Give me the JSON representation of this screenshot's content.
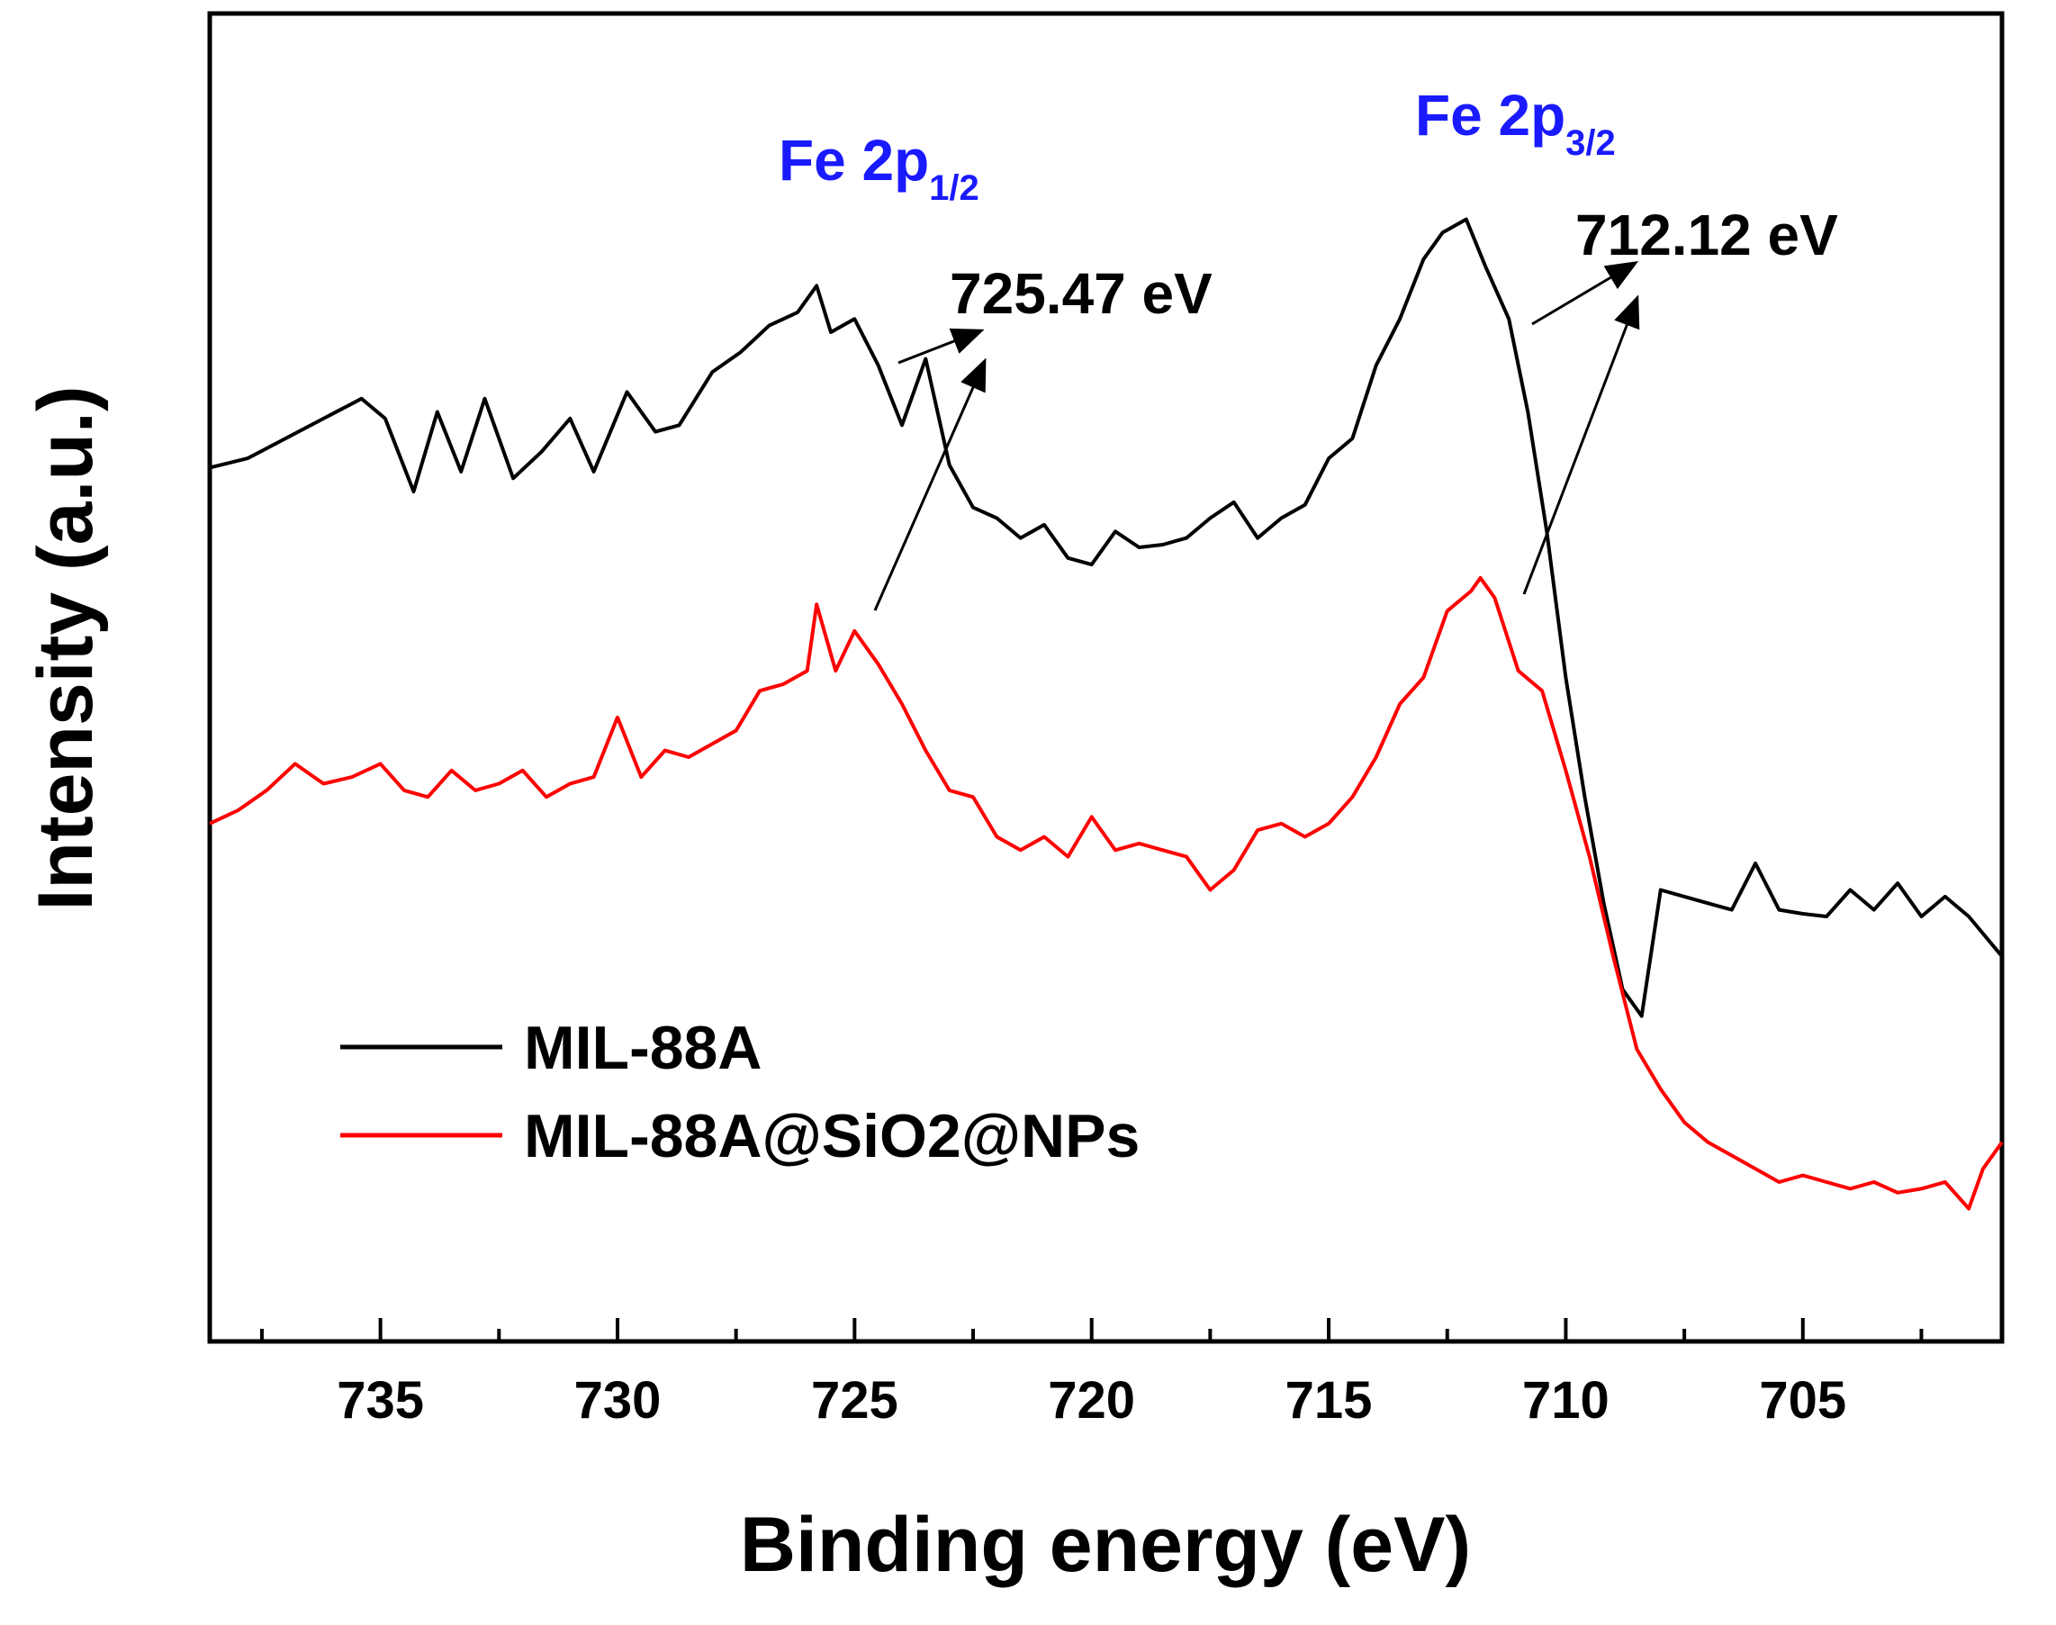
{
  "chart_data": {
    "type": "line",
    "xlabel": "Binding energy (eV)",
    "ylabel": "Intensity (a.u.)",
    "xlim": [
      738.6,
      700.8
    ],
    "ylim": [
      0,
      1
    ],
    "x_reversed": true,
    "x_ticks": [
      735,
      730,
      725,
      720,
      715,
      710,
      705
    ],
    "y_ticks_shown": false,
    "legend_position": "lower-left",
    "peak_labels": [
      {
        "main": "Fe 2p",
        "sub": "1/2",
        "color": "#1a1aff"
      },
      {
        "main": "Fe 2p",
        "sub": "3/2",
        "color": "#1a1aff"
      }
    ],
    "annotations": [
      {
        "text": "725.47 eV",
        "x": 725.47
      },
      {
        "text": "712.12 eV",
        "x": 712.12
      }
    ],
    "series": [
      {
        "name": "MIL-88A",
        "color": "#000000",
        "x": [
          738.6,
          737.8,
          737.0,
          736.2,
          735.4,
          734.9,
          734.3,
          733.8,
          733.3,
          732.8,
          732.2,
          731.6,
          731.0,
          730.5,
          729.8,
          729.2,
          728.7,
          728.0,
          727.4,
          726.8,
          726.2,
          725.8,
          725.5,
          725.0,
          724.5,
          724.0,
          723.5,
          723.0,
          722.5,
          722.0,
          721.5,
          721.0,
          720.5,
          720.0,
          719.5,
          719.0,
          718.5,
          718.0,
          717.5,
          717.0,
          716.5,
          716.0,
          715.5,
          715.0,
          714.5,
          714.0,
          713.5,
          713.0,
          712.6,
          712.1,
          711.7,
          711.2,
          710.8,
          710.4,
          710.0,
          709.6,
          709.2,
          708.8,
          708.4,
          708.0,
          707.5,
          707.0,
          706.5,
          706.0,
          705.5,
          705.0,
          704.5,
          704.0,
          703.5,
          703.0,
          702.5,
          702.0,
          701.5,
          700.8
        ],
        "values": [
          0.658,
          0.665,
          0.68,
          0.695,
          0.71,
          0.695,
          0.64,
          0.7,
          0.655,
          0.71,
          0.65,
          0.67,
          0.695,
          0.655,
          0.715,
          0.685,
          0.69,
          0.73,
          0.745,
          0.765,
          0.775,
          0.795,
          0.76,
          0.77,
          0.735,
          0.69,
          0.74,
          0.66,
          0.628,
          0.62,
          0.605,
          0.615,
          0.59,
          0.585,
          0.61,
          0.598,
          0.6,
          0.605,
          0.62,
          0.632,
          0.605,
          0.62,
          0.63,
          0.665,
          0.68,
          0.735,
          0.77,
          0.815,
          0.835,
          0.845,
          0.81,
          0.77,
          0.7,
          0.61,
          0.5,
          0.41,
          0.33,
          0.265,
          0.245,
          0.34,
          0.335,
          0.33,
          0.325,
          0.36,
          0.325,
          0.322,
          0.32,
          0.34,
          0.325,
          0.345,
          0.32,
          0.335,
          0.32,
          0.29
        ]
      },
      {
        "name": "MIL-88A@SiO2@NPs",
        "color": "#ff0000",
        "x": [
          738.6,
          738.0,
          737.4,
          736.8,
          736.2,
          735.6,
          735.0,
          734.5,
          734.0,
          733.5,
          733.0,
          732.5,
          732.0,
          731.5,
          731.0,
          730.5,
          730.0,
          729.5,
          729.0,
          728.5,
          728.0,
          727.5,
          727.0,
          726.5,
          726.0,
          725.8,
          725.4,
          725.0,
          724.5,
          724.0,
          723.5,
          723.0,
          722.5,
          722.0,
          721.5,
          721.0,
          720.5,
          720.0,
          719.5,
          719.0,
          718.5,
          718.0,
          717.5,
          717.0,
          716.5,
          716.0,
          715.5,
          715.0,
          714.5,
          714.0,
          713.5,
          713.0,
          712.5,
          712.0,
          711.8,
          711.5,
          711.0,
          710.5,
          710.0,
          709.5,
          709.0,
          708.5,
          708.0,
          707.5,
          707.0,
          706.5,
          706.0,
          705.5,
          705.0,
          704.5,
          704.0,
          703.5,
          703.0,
          702.5,
          702.0,
          701.5,
          701.2,
          700.8
        ],
        "values": [
          0.39,
          0.4,
          0.415,
          0.435,
          0.42,
          0.425,
          0.435,
          0.415,
          0.41,
          0.43,
          0.415,
          0.42,
          0.43,
          0.41,
          0.42,
          0.425,
          0.47,
          0.425,
          0.445,
          0.44,
          0.45,
          0.46,
          0.49,
          0.495,
          0.505,
          0.555,
          0.505,
          0.535,
          0.51,
          0.48,
          0.445,
          0.415,
          0.41,
          0.38,
          0.37,
          0.38,
          0.365,
          0.395,
          0.37,
          0.375,
          0.37,
          0.365,
          0.34,
          0.355,
          0.385,
          0.39,
          0.38,
          0.39,
          0.41,
          0.44,
          0.48,
          0.5,
          0.55,
          0.565,
          0.575,
          0.56,
          0.505,
          0.49,
          0.43,
          0.365,
          0.29,
          0.22,
          0.19,
          0.165,
          0.15,
          0.14,
          0.13,
          0.12,
          0.125,
          0.12,
          0.115,
          0.12,
          0.112,
          0.115,
          0.12,
          0.1,
          0.13,
          0.15
        ]
      }
    ]
  }
}
